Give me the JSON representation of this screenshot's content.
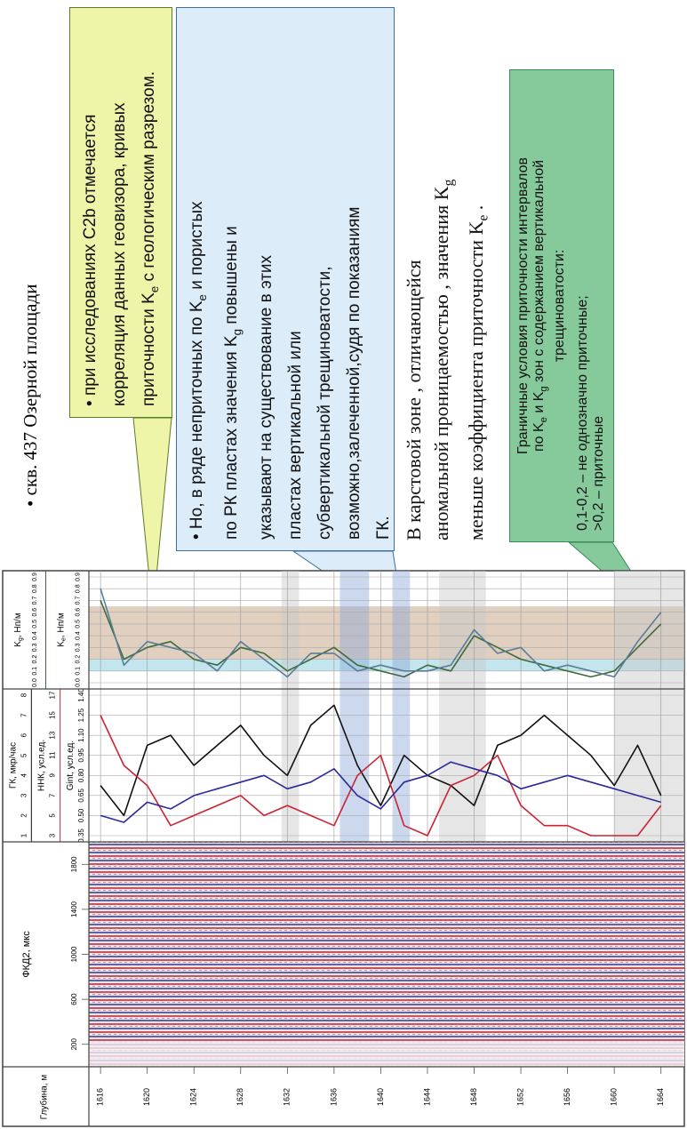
{
  "title": "• скв. 437 Озерной площади",
  "yellow_box": [
    [
      "• при исследованиях C2b отмечается"
    ],
    [
      "корреляция  данных геовизора, кривых"
    ],
    [
      "приточности K",
      "e",
      " с геологическим разрезом."
    ]
  ],
  "blue_box": [
    [
      "• Но, в ряде неприточных по K",
      "e",
      " и пористых"
    ],
    [
      "по РК пластах значения K",
      "g",
      " повышены и"
    ],
    [
      "указывают на существование в  этих"
    ],
    [
      "пластах вертикальной или"
    ],
    [
      "субвертикальной трещиноватости,"
    ],
    [
      "возможно,залеченной,судя по показаниям"
    ],
    [
      "ГК."
    ]
  ],
  "paragraph": [
    [
      "В карстовой зоне , отличающейся"
    ],
    [
      "аномальной проницаемостью , значения K",
      "g"
    ],
    [
      "меньше коэффициента приточности K",
      "e",
      " ."
    ]
  ],
  "green_box": {
    "heading": [
      [
        "Граничные условия приточности интервалов"
      ],
      [
        "по K",
        "e",
        " и K",
        "g",
        " зон с содержанием вертикальной"
      ],
      [
        "трещиноватости:"
      ]
    ],
    "items": [
      [
        "0,1-0,2  – не однозначно приточные;"
      ],
      [
        ">0,2 – приточные"
      ]
    ]
  },
  "log": {
    "depth_label": "Глубина, м",
    "depth_lim": [
      1615,
      1666
    ],
    "depth_ticks": [
      1616,
      1620,
      1624,
      1628,
      1632,
      1636,
      1640,
      1644,
      1648,
      1652,
      1656,
      1660,
      1664
    ],
    "depths": [
      1616,
      1618,
      1620,
      1622,
      1624,
      1626,
      1628,
      1630,
      1632,
      1634,
      1636,
      1638,
      1640,
      1642,
      1644,
      1646,
      1648,
      1650,
      1652,
      1654,
      1656,
      1658,
      1660,
      1662,
      1664
    ],
    "fkd": {
      "title": "ФКД2, мкс",
      "lim": [
        0,
        2000
      ],
      "ticks": [
        200,
        600,
        1000,
        1400,
        1800
      ]
    },
    "zones": [
      {
        "from": 1631.5,
        "to": 1633,
        "color": "#c8c8c8"
      },
      {
        "from": 1636.5,
        "to": 1639,
        "color": "#8fa8d8"
      },
      {
        "from": 1641,
        "to": 1642.5,
        "color": "#8fa8d8"
      },
      {
        "from": 1645,
        "to": 1649,
        "color": "#c8c8c8"
      },
      {
        "from": 1660,
        "to": 1666,
        "color": "#c8c8c8"
      }
    ],
    "kg_bands": [
      {
        "from": 0.2,
        "to": 0.65,
        "color": "#c9a98c"
      },
      {
        "from": 0.1,
        "to": 0.2,
        "color": "#8fcfe0"
      }
    ],
    "curves": [
      {
        "name": [
          "ГК, мкр/час"
        ],
        "track": "gk",
        "color": "#111111",
        "lim": [
          1,
          8
        ],
        "ticks": [
          1,
          2,
          3,
          4,
          5,
          6,
          7,
          8
        ],
        "values": [
          3.5,
          2.0,
          5.5,
          6.0,
          4.5,
          5.5,
          6.5,
          5.0,
          4.0,
          6.5,
          7.5,
          4.5,
          2.5,
          5.0,
          4.0,
          3.5,
          2.5,
          5.5,
          6.0,
          7.0,
          6.0,
          5.0,
          3.5,
          5.5,
          3.0
        ]
      },
      {
        "name": [
          "ННК, усл.ед."
        ],
        "track": "gk",
        "color": "#cc2233",
        "lim": [
          3,
          17
        ],
        "ticks": [
          3,
          5,
          7,
          9,
          11,
          13,
          15,
          17
        ],
        "values": [
          15,
          10,
          8,
          4,
          5,
          6,
          7,
          5,
          6,
          5,
          4,
          9,
          11,
          4,
          3,
          8,
          9,
          11,
          6,
          4,
          4,
          3,
          3,
          3,
          6
        ]
      },
      {
        "name": [
          "Gint, усл.ед."
        ],
        "track": "gk",
        "color": "#2a2a9a",
        "lim": [
          0.35,
          1.4
        ],
        "ticks": [
          0.35,
          {
            "value": 0.5,
            "label": "0.50"
          },
          0.65,
          {
            "value": 0.8,
            "label": "0.80"
          },
          0.95,
          {
            "value": 1.1,
            "label": "1.10"
          },
          1.25,
          {
            "value": 1.4,
            "label": "1.40"
          }
        ],
        "values": [
          0.5,
          0.45,
          0.6,
          0.55,
          0.65,
          0.7,
          0.75,
          0.8,
          0.7,
          0.75,
          0.85,
          0.65,
          0.55,
          0.75,
          0.8,
          0.9,
          0.85,
          0.8,
          0.7,
          0.75,
          0.8,
          0.75,
          0.7,
          0.65,
          0.6
        ]
      },
      {
        "name": [
          "K",
          "g",
          ", Нп/м"
        ],
        "track": "kg",
        "color": "#3d6b3a",
        "lim": [
          0,
          0.9
        ],
        "ticks": [
          {
            "value": 0,
            "label": "0.0"
          },
          0.1,
          0.2,
          0.3,
          0.4,
          0.5,
          0.6,
          0.7,
          0.8,
          0.9
        ],
        "values": [
          0.7,
          0.2,
          0.3,
          0.35,
          0.2,
          0.15,
          0.3,
          0.25,
          0.1,
          0.2,
          0.3,
          0.15,
          0.1,
          0.05,
          0.15,
          0.1,
          0.4,
          0.3,
          0.2,
          0.15,
          0.1,
          0.05,
          0.1,
          0.3,
          0.5
        ]
      },
      {
        "name": [
          "K",
          "e",
          ", Нп/м"
        ],
        "track": "kg",
        "color": "#5a7d99",
        "lim": [
          0,
          0.9
        ],
        "ticks": [
          {
            "value": 0,
            "label": "0.0"
          },
          0.1,
          0.2,
          0.3,
          0.4,
          0.5,
          0.6,
          0.7,
          0.8,
          0.9
        ],
        "values": [
          0.8,
          0.15,
          0.35,
          0.3,
          0.25,
          0.1,
          0.35,
          0.2,
          0.05,
          0.25,
          0.25,
          0.1,
          0.15,
          0.1,
          0.1,
          0.15,
          0.45,
          0.25,
          0.3,
          0.1,
          0.15,
          0.1,
          0.05,
          0.35,
          0.6
        ]
      }
    ]
  }
}
